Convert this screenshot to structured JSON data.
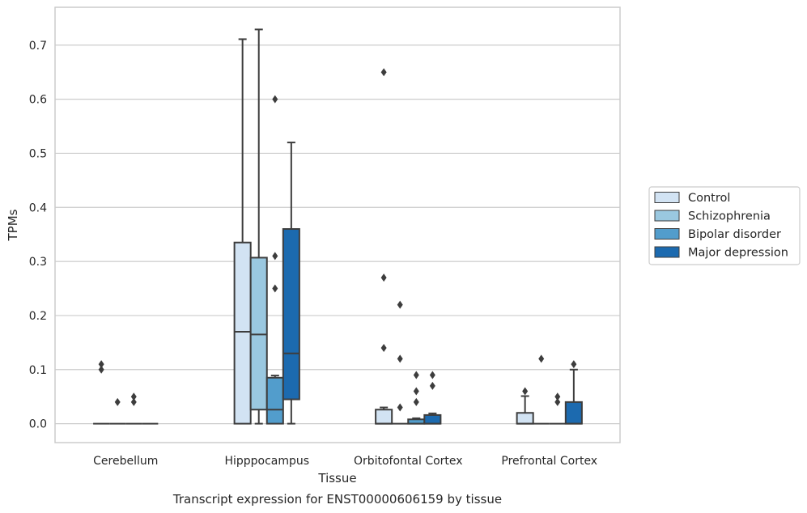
{
  "chart_data": {
    "type": "boxplot",
    "title": "",
    "caption": "Transcript expression for ENST00000606159 by tissue",
    "xlabel": "Tissue",
    "ylabel": "TPMs",
    "ylim": [
      -0.035,
      0.77
    ],
    "yticks": [
      0.0,
      0.1,
      0.2,
      0.3,
      0.4,
      0.5,
      0.6,
      0.7
    ],
    "ytick_labels": [
      "0.0",
      "0.1",
      "0.2",
      "0.3",
      "0.4",
      "0.5",
      "0.6",
      "0.7"
    ],
    "grid": "horizontal",
    "legend_position": "right",
    "categories": [
      "Cerebellum",
      "Hipppocampus",
      "Orbitofontal Cortex",
      "Prefrontal Cortex"
    ],
    "series": [
      {
        "name": "Control",
        "color": "#d2e3f3",
        "boxes": [
          {
            "q1": 0.0,
            "median": 0.0,
            "q3": 0.0,
            "whisker_low": 0.0,
            "whisker_high": 0.0,
            "outliers": [
              0.11,
              0.1
            ]
          },
          {
            "q1": 0.0,
            "median": 0.17,
            "q3": 0.335,
            "whisker_low": 0.0,
            "whisker_high": 0.711,
            "outliers": []
          },
          {
            "q1": 0.0,
            "median": 0.0,
            "q3": 0.026,
            "whisker_low": 0.0,
            "whisker_high": 0.03,
            "outliers": [
              0.65,
              0.27,
              0.14
            ]
          },
          {
            "q1": 0.0,
            "median": 0.0,
            "q3": 0.02,
            "whisker_low": 0.0,
            "whisker_high": 0.051,
            "outliers": [
              0.06
            ]
          }
        ]
      },
      {
        "name": "Schizophrenia",
        "color": "#9ac8e0",
        "boxes": [
          {
            "q1": 0.0,
            "median": 0.0,
            "q3": 0.0,
            "whisker_low": 0.0,
            "whisker_high": 0.0,
            "outliers": [
              0.04
            ]
          },
          {
            "q1": 0.026,
            "median": 0.165,
            "q3": 0.307,
            "whisker_low": 0.0,
            "whisker_high": 0.729,
            "outliers": []
          },
          {
            "q1": 0.0,
            "median": 0.0,
            "q3": 0.0,
            "whisker_low": 0.0,
            "whisker_high": 0.0,
            "outliers": [
              0.22,
              0.12,
              0.03
            ]
          },
          {
            "q1": 0.0,
            "median": 0.0,
            "q3": 0.0,
            "whisker_low": 0.0,
            "whisker_high": 0.0,
            "outliers": [
              0.12
            ]
          }
        ]
      },
      {
        "name": "Bipolar disorder",
        "color": "#529dcc",
        "boxes": [
          {
            "q1": 0.0,
            "median": 0.0,
            "q3": 0.0,
            "whisker_low": 0.0,
            "whisker_high": 0.0,
            "outliers": [
              0.05,
              0.04
            ]
          },
          {
            "q1": 0.0,
            "median": 0.026,
            "q3": 0.085,
            "whisker_low": 0.0,
            "whisker_high": 0.089,
            "outliers": [
              0.6,
              0.31,
              0.25
            ]
          },
          {
            "q1": 0.0,
            "median": 0.0,
            "q3": 0.008,
            "whisker_low": 0.0,
            "whisker_high": 0.01,
            "outliers": [
              0.09,
              0.06,
              0.04
            ]
          },
          {
            "q1": 0.0,
            "median": 0.0,
            "q3": 0.0,
            "whisker_low": 0.0,
            "whisker_high": 0.0,
            "outliers": [
              0.05,
              0.04
            ]
          }
        ]
      },
      {
        "name": "Major depression",
        "color": "#1c6aaf",
        "boxes": [
          {
            "q1": 0.0,
            "median": 0.0,
            "q3": 0.0,
            "whisker_low": 0.0,
            "whisker_high": 0.0,
            "outliers": []
          },
          {
            "q1": 0.045,
            "median": 0.13,
            "q3": 0.36,
            "whisker_low": 0.0,
            "whisker_high": 0.52,
            "outliers": []
          },
          {
            "q1": 0.0,
            "median": 0.0,
            "q3": 0.016,
            "whisker_low": 0.0,
            "whisker_high": 0.019,
            "outliers": [
              0.09,
              0.07
            ]
          },
          {
            "q1": 0.0,
            "median": 0.0,
            "q3": 0.04,
            "whisker_low": 0.0,
            "whisker_high": 0.1,
            "outliers": [
              0.11
            ]
          }
        ]
      }
    ]
  }
}
